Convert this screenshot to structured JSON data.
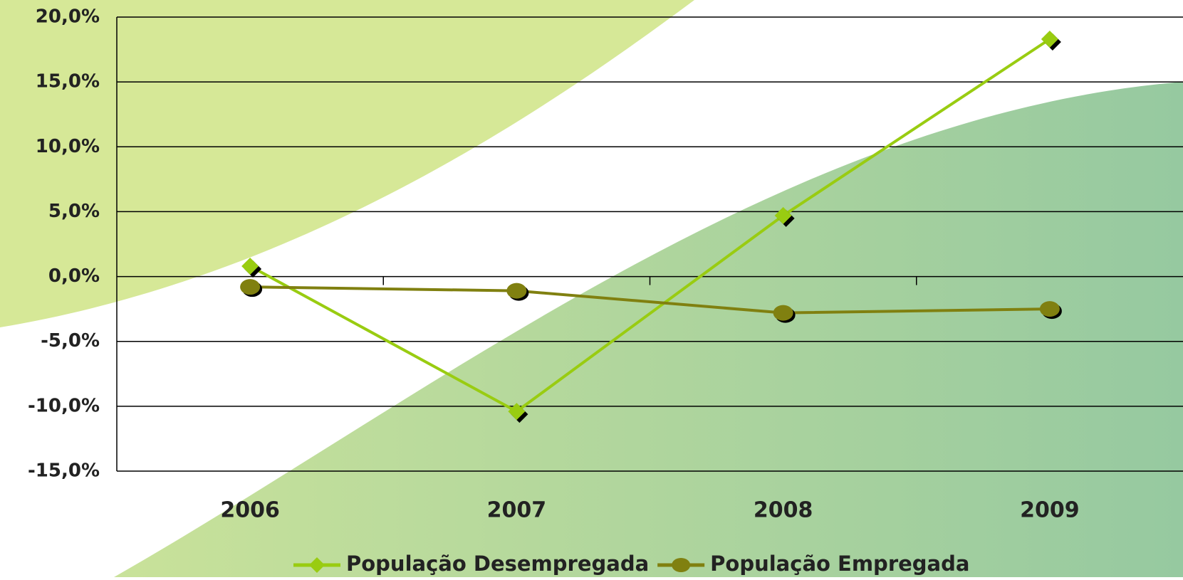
{
  "chart_data": {
    "type": "line",
    "categories": [
      "2006",
      "2007",
      "2008",
      "2009"
    ],
    "series": [
      {
        "name": "População Desempregada",
        "color": "#99cc11",
        "marker": "diamond",
        "values": [
          0.8,
          -10.4,
          4.7,
          18.3
        ]
      },
      {
        "name": "População Empregada",
        "color": "#808010",
        "marker": "circle",
        "values": [
          -0.8,
          -1.1,
          -2.8,
          -2.5
        ]
      }
    ],
    "ylim": [
      -15,
      20
    ],
    "yticks": [
      {
        "value": -15,
        "label": "-15,0%"
      },
      {
        "value": -10,
        "label": "-10,0%"
      },
      {
        "value": -5,
        "label": "-5,0%"
      },
      {
        "value": 0,
        "label": "0,0%"
      },
      {
        "value": 5,
        "label": "5,0%"
      },
      {
        "value": 10,
        "label": "10,0%"
      },
      {
        "value": 15,
        "label": "15,0%"
      },
      {
        "value": 20,
        "label": "20,0%"
      }
    ],
    "grid": true,
    "legend": "bottom"
  }
}
